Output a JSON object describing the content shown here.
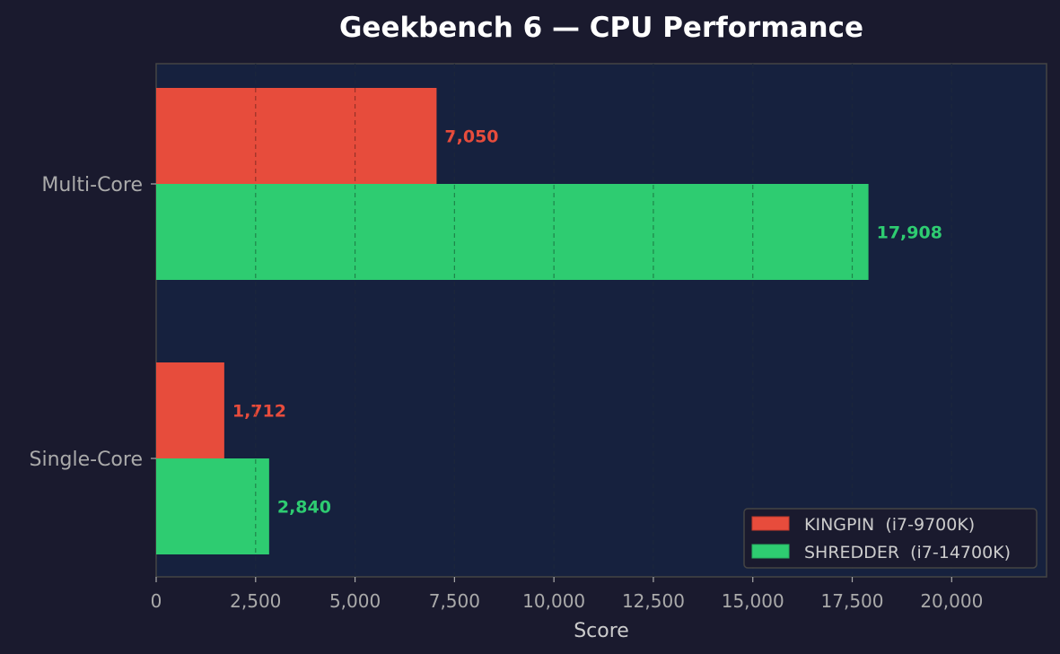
{
  "chart_data": {
    "type": "bar",
    "orientation": "horizontal",
    "title": "Geekbench 6 — CPU Performance",
    "xlabel": "Score",
    "ylabel": "",
    "categories": [
      "Multi-Core",
      "Single-Core"
    ],
    "series": [
      {
        "name": "KINGPIN  (i7-9700K)",
        "color": "#e74c3c",
        "values": [
          7050,
          1712
        ],
        "labels": [
          "7,050",
          "1,712"
        ]
      },
      {
        "name": "SHREDDER  (i7-14700K)",
        "color": "#2ecc71",
        "values": [
          17908,
          2840
        ],
        "labels": [
          "17,908",
          "2,840"
        ]
      }
    ],
    "xlim": [
      0,
      22385
    ],
    "xticks": [
      0,
      2500,
      5000,
      7500,
      10000,
      12500,
      15000,
      17500,
      20000
    ],
    "xtick_labels": [
      "0",
      "2,500",
      "5,000",
      "7,500",
      "10,000",
      "12,500",
      "15,000",
      "17,500",
      "20,000"
    ],
    "grid": "x, dashed",
    "legend_position": "bottom-right",
    "colors": {
      "background": "#1a1a2e",
      "plot_background": "#16213e",
      "text": "#ffffff",
      "axis_text": "#aaaaaa"
    }
  }
}
